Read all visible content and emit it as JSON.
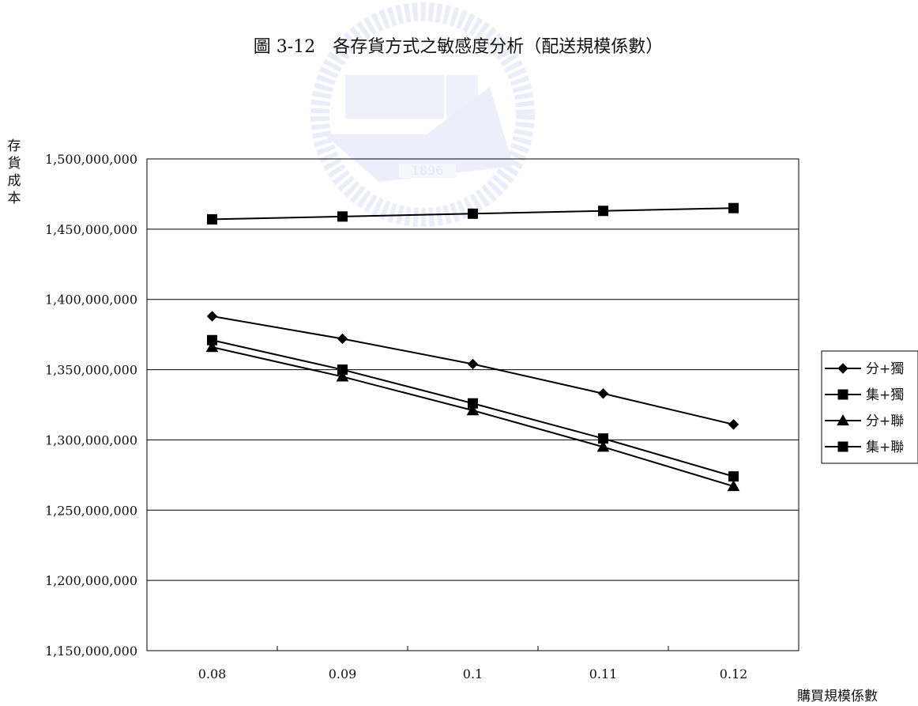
{
  "chart_data": {
    "type": "line",
    "title": "圖 3-12　各存貨方式之敏感度分析（配送規模係數）",
    "xlabel": "購買規模係數",
    "ylabel": "存貨成本",
    "categories": [
      "0.08",
      "0.09",
      "0.1",
      "0.11",
      "0.12"
    ],
    "ylim": [
      1150000000,
      1500000000
    ],
    "yticks": [
      1150000000,
      1200000000,
      1250000000,
      1300000000,
      1350000000,
      1400000000,
      1450000000,
      1500000000
    ],
    "ytick_labels": [
      "1,150,000,000",
      "1,200,000,000",
      "1,250,000,000",
      "1,300,000,000",
      "1,350,000,000",
      "1,400,000,000",
      "1,450,000,000",
      "1,500,000,000"
    ],
    "grid": "horizontal",
    "legend_position": "right",
    "series": [
      {
        "name": "分+獨",
        "marker": "diamond",
        "values": [
          1388000000,
          1372000000,
          1354000000,
          1333000000,
          1311000000
        ]
      },
      {
        "name": "集+獨",
        "marker": "square",
        "values": [
          1371000000,
          1350000000,
          1326000000,
          1301000000,
          1274000000
        ]
      },
      {
        "name": "分+聯",
        "marker": "triangle",
        "values": [
          1366000000,
          1345000000,
          1321000000,
          1295000000,
          1267000000
        ]
      },
      {
        "name": "集+聯",
        "marker": "square",
        "values": [
          1457000000,
          1459000000,
          1461000000,
          1463000000,
          1465000000
        ]
      }
    ]
  },
  "colors": {
    "line": "#000000",
    "grid": "#000000",
    "watermark": "#ccccee"
  },
  "watermark_text": "1896"
}
